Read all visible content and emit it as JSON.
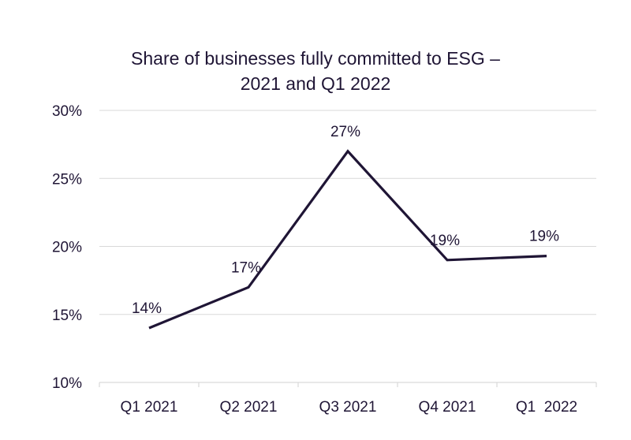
{
  "chart_data": {
    "type": "line",
    "title": "Share of businesses fully committed to ESG – 2021 and Q1 2022",
    "title_lines": [
      "Share of businesses fully committed to ESG –",
      "2021 and Q1 2022"
    ],
    "categories": [
      "Q1 2021",
      "Q2 2021",
      "Q3 2021",
      "Q4 2021",
      "Q1  2022"
    ],
    "series": [
      {
        "values": [
          14,
          17,
          27,
          19,
          19.3
        ],
        "labels": [
          "14%",
          "17%",
          "27%",
          "19%",
          "19%"
        ],
        "color": "#1f1535"
      }
    ],
    "xlabel": "",
    "ylabel": "",
    "ylim": [
      10,
      30
    ],
    "yticks": [
      10,
      15,
      20,
      25,
      30
    ],
    "ytick_labels": [
      "10%",
      "15%",
      "20%",
      "25%",
      "30%"
    ],
    "grid": true,
    "legend": "none",
    "colors": {
      "line": "#1f1535",
      "text": "#1f1535",
      "grid": "#d9d9d9"
    }
  }
}
